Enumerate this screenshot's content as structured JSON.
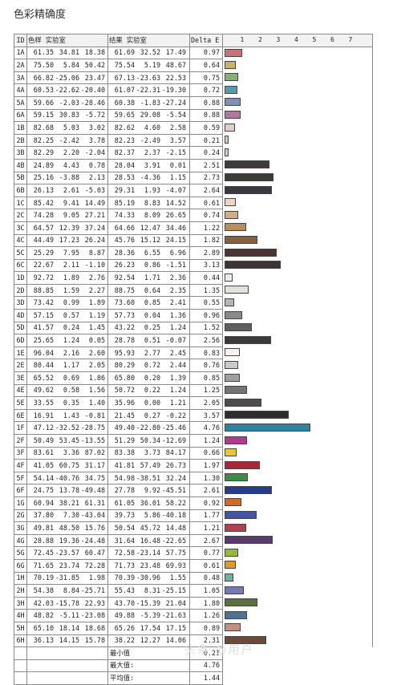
{
  "title": "色彩精确度",
  "headers": {
    "id": "ID",
    "target": "色样 实验室",
    "result": "结果 实验室",
    "delta": "Delta E"
  },
  "axis_ticks": [
    "1",
    "2",
    "3",
    "4",
    "5",
    "6",
    "7"
  ],
  "rows": [
    {
      "id": "1A",
      "t": [
        "61.35",
        "34.81",
        "18.38"
      ],
      "r": [
        "61.69",
        "32.52",
        "17.49"
      ],
      "de": "0.97",
      "dv": 0.97,
      "color": "#c4747a"
    },
    {
      "id": "2A",
      "t": [
        "75.50",
        "5.84",
        "50.42"
      ],
      "r": [
        "75.54",
        "5.19",
        "48.67"
      ],
      "de": "0.64",
      "dv": 0.64,
      "color": "#c8b070"
    },
    {
      "id": "3A",
      "t": [
        "66.82",
        "-25.06",
        "23.47"
      ],
      "r": [
        "67.13",
        "-23.63",
        "22.53"
      ],
      "de": "0.75",
      "dv": 0.75,
      "color": "#86b078"
    },
    {
      "id": "4A",
      "t": [
        "60.53",
        "-22.62",
        "-20.40"
      ],
      "r": [
        "61.07",
        "-22.31",
        "-19.30"
      ],
      "de": "0.72",
      "dv": 0.72,
      "color": "#5a9aa8"
    },
    {
      "id": "5A",
      "t": [
        "59.66",
        "-2.03",
        "-28.46"
      ],
      "r": [
        "60.38",
        "-1.83",
        "-27.24"
      ],
      "de": "0.88",
      "dv": 0.88,
      "color": "#7f90b8"
    },
    {
      "id": "6A",
      "t": [
        "59.15",
        "30.83",
        "-5.72"
      ],
      "r": [
        "59.65",
        "29.08",
        "-5.54"
      ],
      "de": "0.88",
      "dv": 0.88,
      "color": "#b07aa0"
    },
    {
      "id": "1B",
      "t": [
        "82.68",
        "5.03",
        "3.02"
      ],
      "r": [
        "82.62",
        "4.60",
        "2.58"
      ],
      "de": "0.59",
      "dv": 0.59,
      "color": "#e0cfc8"
    },
    {
      "id": "2B",
      "t": [
        "82.25",
        "-2.42",
        "3.78"
      ],
      "r": [
        "82.23",
        "-2.49",
        "3.57"
      ],
      "de": "0.21",
      "dv": 0.21,
      "color": "#ccccc0"
    },
    {
      "id": "3B",
      "t": [
        "82.29",
        "2.20",
        "-2.04"
      ],
      "r": [
        "82.37",
        "2.37",
        "-2.15"
      ],
      "de": "0.24",
      "dv": 0.24,
      "color": "#d4ccd2"
    },
    {
      "id": "4B",
      "t": [
        "24.89",
        "4.43",
        "0.78"
      ],
      "r": [
        "28.04",
        "3.91",
        "0.01"
      ],
      "de": "2.51",
      "dv": 2.51,
      "color": "#403a3a"
    },
    {
      "id": "5B",
      "t": [
        "25.16",
        "-3.88",
        "2.13"
      ],
      "r": [
        "28.53",
        "-4.36",
        "1.15"
      ],
      "de": "2.73",
      "dv": 2.73,
      "color": "#383d38"
    },
    {
      "id": "6B",
      "t": [
        "26.13",
        "2.61",
        "-5.03"
      ],
      "r": [
        "29.31",
        "1.93",
        "-4.07"
      ],
      "de": "2.64",
      "dv": 2.64,
      "color": "#3a3840"
    },
    {
      "id": "1C",
      "t": [
        "85.42",
        "9.41",
        "14.49"
      ],
      "r": [
        "85.19",
        "8.83",
        "14.52"
      ],
      "de": "0.61",
      "dv": 0.61,
      "color": "#edd5c2"
    },
    {
      "id": "2C",
      "t": [
        "74.28",
        "9.05",
        "27.21"
      ],
      "r": [
        "74.33",
        "8.09",
        "26.65"
      ],
      "de": "0.74",
      "dv": 0.74,
      "color": "#d2ae88"
    },
    {
      "id": "3C",
      "t": [
        "64.57",
        "12.39",
        "37.24"
      ],
      "r": [
        "64.66",
        "12.47",
        "34.46"
      ],
      "de": "1.22",
      "dv": 1.22,
      "color": "#b88c5c"
    },
    {
      "id": "4C",
      "t": [
        "44.49",
        "17.23",
        "26.24"
      ],
      "r": [
        "45.76",
        "15.12",
        "24.15"
      ],
      "de": "1.82",
      "dv": 1.82,
      "color": "#86603e"
    },
    {
      "id": "5C",
      "t": [
        "25.29",
        "7.95",
        "8.87"
      ],
      "r": [
        "28.36",
        "6.55",
        "6.96"
      ],
      "de": "2.89",
      "dv": 2.89,
      "color": "#4a3530"
    },
    {
      "id": "6C",
      "t": [
        "22.67",
        "2.11",
        "-1.10"
      ],
      "r": [
        "26.23",
        "0.86",
        "-1.51"
      ],
      "de": "3.13",
      "dv": 3.13,
      "color": "#3a3434"
    },
    {
      "id": "1D",
      "t": [
        "92.72",
        "1.89",
        "2.76"
      ],
      "r": [
        "92.54",
        "1.71",
        "2.36"
      ],
      "de": "0.44",
      "dv": 0.44,
      "color": "#f0ecea"
    },
    {
      "id": "2D",
      "t": [
        "88.85",
        "1.59",
        "2.27"
      ],
      "r": [
        "88.75",
        "0.64",
        "2.35"
      ],
      "de": "1.35",
      "dv": 1.35,
      "color": "#e4e0dc"
    },
    {
      "id": "3D",
      "t": [
        "73.42",
        "0.99",
        "1.89"
      ],
      "r": [
        "73.60",
        "0.85",
        "2.41"
      ],
      "de": "0.55",
      "dv": 0.55,
      "color": "#b8b6b2"
    },
    {
      "id": "4D",
      "t": [
        "57.15",
        "0.57",
        "1.19"
      ],
      "r": [
        "57.73",
        "0.04",
        "1.36"
      ],
      "de": "0.96",
      "dv": 0.96,
      "color": "#8c8a88"
    },
    {
      "id": "5D",
      "t": [
        "41.57",
        "0.24",
        "1.45"
      ],
      "r": [
        "43.22",
        "0.25",
        "1.24"
      ],
      "de": "1.52",
      "dv": 1.52,
      "color": "#62605e"
    },
    {
      "id": "6D",
      "t": [
        "25.65",
        "1.24",
        "0.05"
      ],
      "r": [
        "28.78",
        "0.51",
        "-0.07"
      ],
      "de": "2.56",
      "dv": 2.56,
      "color": "#3c3a3a"
    },
    {
      "id": "1E",
      "t": [
        "96.04",
        "2.16",
        "2.60"
      ],
      "r": [
        "95.93",
        "2.77",
        "2.45"
      ],
      "de": "0.83",
      "dv": 0.83,
      "color": "#f8f2ee"
    },
    {
      "id": "2E",
      "t": [
        "80.44",
        "1.17",
        "2.05"
      ],
      "r": [
        "80.29",
        "0.72",
        "2.44"
      ],
      "de": "0.76",
      "dv": 0.76,
      "color": "#cccac6"
    },
    {
      "id": "3E",
      "t": [
        "65.52",
        "0.69",
        "1.86"
      ],
      "r": [
        "65.80",
        "0.20",
        "1.39"
      ],
      "de": "0.85",
      "dv": 0.85,
      "color": "#a2a09e"
    },
    {
      "id": "4E",
      "t": [
        "49.62",
        "0.58",
        "1.56"
      ],
      "r": [
        "50.72",
        "0.22",
        "1.24"
      ],
      "de": "1.25",
      "dv": 1.25,
      "color": "#767472"
    },
    {
      "id": "5E",
      "t": [
        "33.55",
        "0.35",
        "1.40"
      ],
      "r": [
        "35.96",
        "0.00",
        "1.21"
      ],
      "de": "2.05",
      "dv": 2.05,
      "color": "#4e4c4c"
    },
    {
      "id": "6E",
      "t": [
        "16.91",
        "1.43",
        "-0.81"
      ],
      "r": [
        "21.45",
        "0.27",
        "-0.22"
      ],
      "de": "3.57",
      "dv": 3.57,
      "color": "#2e2c2c"
    },
    {
      "id": "1F",
      "t": [
        "47.12",
        "-32.52",
        "-28.75"
      ],
      "r": [
        "49.40",
        "-22.80",
        "-25.46"
      ],
      "de": "4.76",
      "dv": 4.76,
      "color": "#2a86a0"
    },
    {
      "id": "2F",
      "t": [
        "50.49",
        "53.45",
        "-13.55"
      ],
      "r": [
        "51.29",
        "50.34",
        "-12.69"
      ],
      "de": "1.24",
      "dv": 1.24,
      "color": "#b03a8c"
    },
    {
      "id": "3F",
      "t": [
        "83.61",
        "3.36",
        "87.02"
      ],
      "r": [
        "83.38",
        "3.73",
        "84.17"
      ],
      "de": "0.66",
      "dv": 0.66,
      "color": "#e8c830"
    },
    {
      "id": "4F",
      "t": [
        "41.05",
        "60.75",
        "31.17"
      ],
      "r": [
        "41.81",
        "57.49",
        "26.73"
      ],
      "de": "1.97",
      "dv": 1.97,
      "color": "#a8283a"
    },
    {
      "id": "5F",
      "t": [
        "54.14",
        "-40.76",
        "34.75"
      ],
      "r": [
        "54.98",
        "-38.51",
        "32.24"
      ],
      "de": "1.30",
      "dv": 1.3,
      "color": "#3c8c48"
    },
    {
      "id": "6F",
      "t": [
        "24.75",
        "13.78",
        "-49.48"
      ],
      "r": [
        "27.78",
        "9.92",
        "-45.51"
      ],
      "de": "2.61",
      "dv": 2.61,
      "color": "#263c88"
    },
    {
      "id": "1G",
      "t": [
        "60.94",
        "38.21",
        "61.31"
      ],
      "r": [
        "61.05",
        "36.01",
        "58.22"
      ],
      "de": "0.92",
      "dv": 0.92,
      "color": "#d06a28"
    },
    {
      "id": "2G",
      "t": [
        "37.80",
        "7.30",
        "-43.04"
      ],
      "r": [
        "39.73",
        "5.86",
        "-40.18"
      ],
      "de": "1.77",
      "dv": 1.77,
      "color": "#4456a0"
    },
    {
      "id": "3G",
      "t": [
        "49.81",
        "48.50",
        "15.76"
      ],
      "r": [
        "50.54",
        "45.72",
        "14.48"
      ],
      "de": "1.21",
      "dv": 1.21,
      "color": "#b04050"
    },
    {
      "id": "4G",
      "t": [
        "28.88",
        "19.36",
        "-24.48"
      ],
      "r": [
        "31.64",
        "16.48",
        "-22.65"
      ],
      "de": "2.67",
      "dv": 2.67,
      "color": "#583a6c"
    },
    {
      "id": "5G",
      "t": [
        "72.45",
        "-23.57",
        "60.47"
      ],
      "r": [
        "72.58",
        "-23.14",
        "57.75"
      ],
      "de": "0.77",
      "dv": 0.77,
      "color": "#98b83c"
    },
    {
      "id": "6G",
      "t": [
        "71.65",
        "23.74",
        "72.28"
      ],
      "r": [
        "71.73",
        "23.48",
        "69.93"
      ],
      "de": "0.61",
      "dv": 0.61,
      "color": "#e09a28"
    },
    {
      "id": "1H",
      "t": [
        "70.19",
        "-31.85",
        "1.98"
      ],
      "r": [
        "70.39",
        "-30.96",
        "1.55"
      ],
      "de": "0.48",
      "dv": 0.48,
      "color": "#6ab49c"
    },
    {
      "id": "2H",
      "t": [
        "54.38",
        "8.84",
        "-25.71"
      ],
      "r": [
        "55.43",
        "8.31",
        "-25.15"
      ],
      "de": "1.05",
      "dv": 1.05,
      "color": "#7a78b0"
    },
    {
      "id": "3H",
      "t": [
        "42.03",
        "-15.78",
        "22.93"
      ],
      "r": [
        "43.70",
        "-15.39",
        "21.04"
      ],
      "de": "1.80",
      "dv": 1.8,
      "color": "#5a7040"
    },
    {
      "id": "4H",
      "t": [
        "48.82",
        "-5.11",
        "-23.08"
      ],
      "r": [
        "49.88",
        "-5.39",
        "-21.63"
      ],
      "de": "1.26",
      "dv": 1.26,
      "color": "#4e7294"
    },
    {
      "id": "5H",
      "t": [
        "65.10",
        "18.14",
        "18.68"
      ],
      "r": [
        "65.26",
        "17.54",
        "17.15"
      ],
      "de": "0.89",
      "dv": 0.89,
      "color": "#c49080"
    },
    {
      "id": "6H",
      "t": [
        "36.13",
        "14.15",
        "15.78"
      ],
      "r": [
        "38.22",
        "12.27",
        "14.06"
      ],
      "de": "2.31",
      "dv": 2.31,
      "color": "#6a4a3a"
    }
  ],
  "summary": [
    {
      "label": "最小值",
      "value": "0.21"
    },
    {
      "label": "最大值:",
      "value": "4.76"
    },
    {
      "label": "平均值:",
      "value": "1.44"
    }
  ],
  "watermark": "头条 @用户"
}
